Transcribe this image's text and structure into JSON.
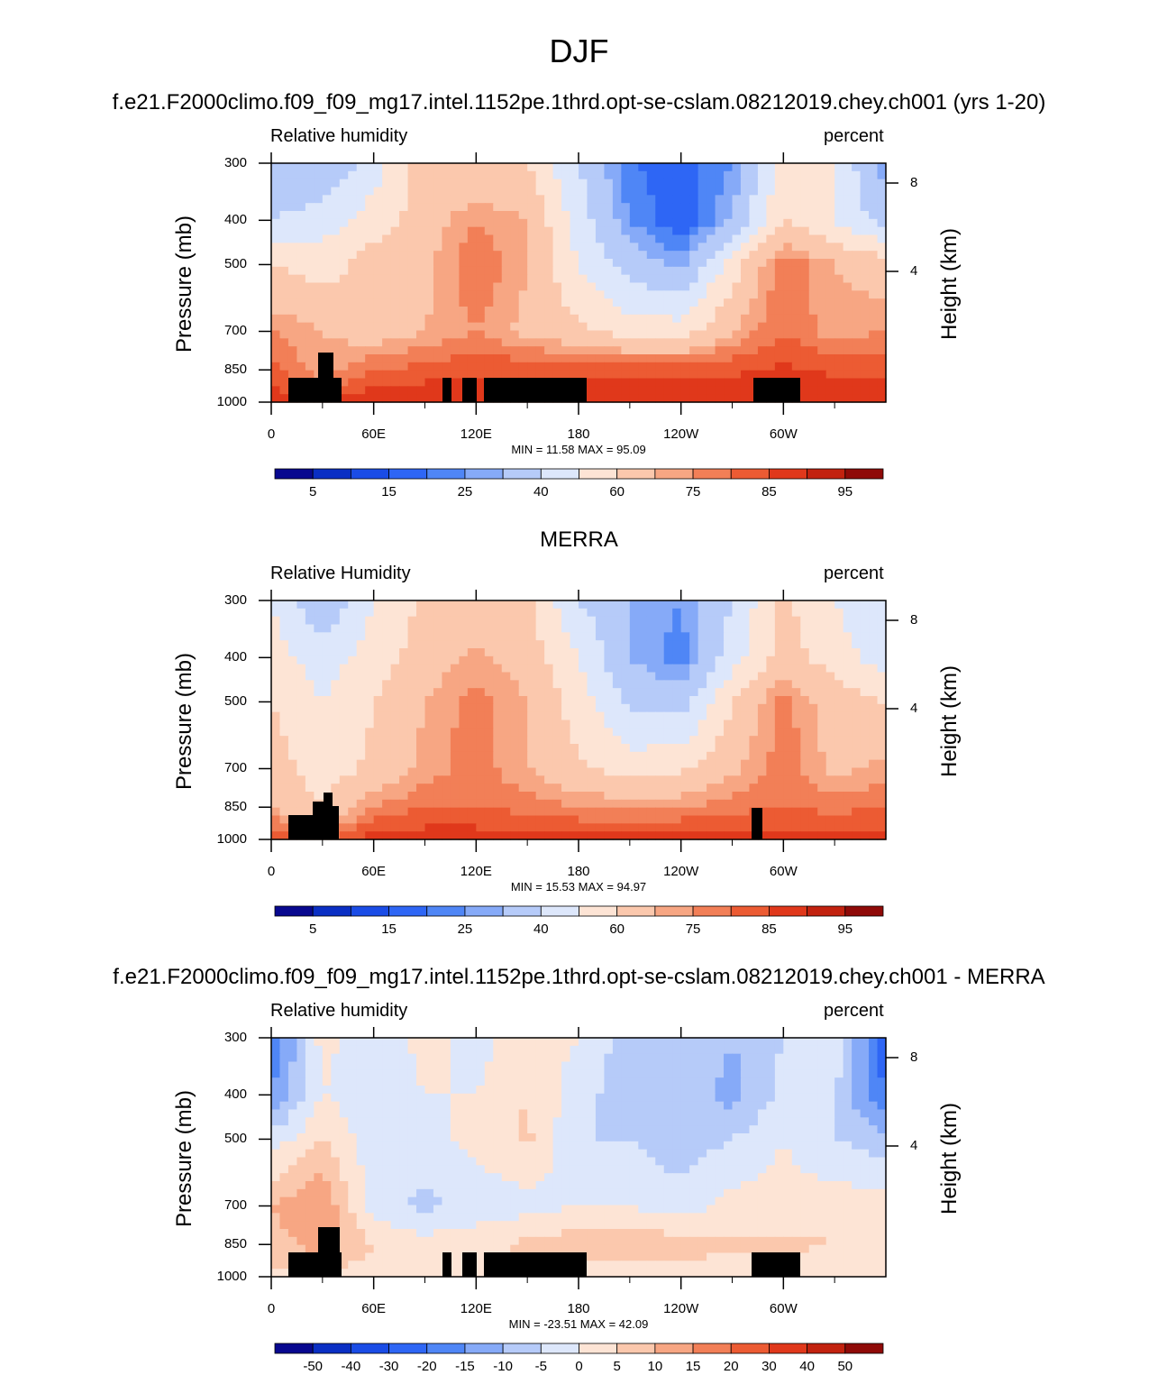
{
  "title": "DJF",
  "chart_data": [
    {
      "type": "heatmap",
      "title": "f.e21.F2000climo.f09_f09_mg17.intel.1152pe.1thrd.opt-se-cslam.08212019.chey.ch001 (yrs 1-20)",
      "variable_label": "Relative humidity",
      "units": "percent",
      "ylabel": "Pressure (mb)",
      "y2label": "Height (km)",
      "y_ticks": [
        "300",
        "400",
        "500",
        "700",
        "850",
        "1000"
      ],
      "y2_ticks": [
        "8",
        "4"
      ],
      "x_ticks": [
        "0",
        "60E",
        "120E",
        "180",
        "120W",
        "60W"
      ],
      "min_text": "MIN =  11.58  MAX =  95.09",
      "colorbar_labels": [
        "5",
        "15",
        "25",
        "40",
        "60",
        "75",
        "85",
        "95"
      ],
      "colorbar_levels": [
        5,
        10,
        15,
        20,
        25,
        30,
        40,
        50,
        60,
        70,
        75,
        80,
        85,
        90,
        95
      ],
      "x_data": [
        0,
        30,
        60,
        90,
        120,
        150,
        180,
        210,
        240,
        270,
        300,
        330,
        360
      ],
      "y_data": [
        300,
        400,
        500,
        700,
        850,
        1000
      ],
      "z": [
        [
          30,
          30,
          45,
          65,
          60,
          60,
          40,
          20,
          18,
          25,
          55,
          50,
          25
        ],
        [
          40,
          45,
          55,
          65,
          75,
          70,
          45,
          25,
          15,
          30,
          60,
          50,
          35
        ],
        [
          60,
          55,
          65,
          68,
          80,
          70,
          50,
          35,
          28,
          55,
          80,
          70,
          65
        ],
        [
          75,
          70,
          65,
          70,
          75,
          68,
          62,
          55,
          55,
          70,
          80,
          72,
          75
        ],
        [
          82,
          72,
          80,
          82,
          84,
          84,
          84,
          84,
          84,
          84,
          86,
          84,
          84
        ],
        [
          88,
          85,
          90,
          90,
          90,
          90,
          90,
          90,
          90,
          90,
          90,
          90,
          90
        ]
      ]
    },
    {
      "type": "heatmap",
      "title": "MERRA",
      "variable_label": "Relative Humidity",
      "units": "percent",
      "ylabel": "Pressure (mb)",
      "y2label": "Height (km)",
      "y_ticks": [
        "300",
        "400",
        "500",
        "700",
        "850",
        "1000"
      ],
      "y2_ticks": [
        "8",
        "4"
      ],
      "x_ticks": [
        "0",
        "60E",
        "120E",
        "180",
        "120W",
        "60W"
      ],
      "min_text": "MIN =  15.53  MAX =  94.97",
      "colorbar_labels": [
        "5",
        "15",
        "25",
        "40",
        "60",
        "75",
        "85",
        "95"
      ],
      "colorbar_levels": [
        5,
        10,
        15,
        20,
        25,
        30,
        40,
        50,
        60,
        70,
        75,
        80,
        85,
        90,
        95
      ],
      "x_data": [
        0,
        30,
        60,
        90,
        120,
        150,
        180,
        210,
        240,
        270,
        300,
        330,
        360
      ],
      "y_data": [
        300,
        400,
        500,
        700,
        850,
        1000
      ],
      "z": [
        [
          50,
          30,
          50,
          62,
          65,
          62,
          40,
          30,
          25,
          40,
          62,
          50,
          40
        ],
        [
          55,
          45,
          55,
          65,
          72,
          66,
          50,
          30,
          22,
          45,
          65,
          55,
          45
        ],
        [
          60,
          50,
          60,
          70,
          78,
          70,
          55,
          38,
          35,
          60,
          78,
          65,
          60
        ],
        [
          65,
          55,
          62,
          72,
          78,
          70,
          62,
          55,
          58,
          68,
          78,
          68,
          72
        ],
        [
          70,
          60,
          75,
          80,
          80,
          78,
          75,
          75,
          75,
          78,
          80,
          78,
          80
        ],
        [
          85,
          80,
          88,
          88,
          88,
          88,
          88,
          88,
          88,
          88,
          88,
          88,
          88
        ]
      ]
    },
    {
      "type": "heatmap",
      "title": "f.e21.F2000climo.f09_f09_mg17.intel.1152pe.1thrd.opt-se-cslam.08212019.chey.ch001 - MERRA",
      "variable_label": "Relative humidity",
      "units": "percent",
      "ylabel": "Pressure (mb)",
      "y2label": "Height (km)",
      "y_ticks": [
        "300",
        "400",
        "500",
        "700",
        "850",
        "1000"
      ],
      "y2_ticks": [
        "8",
        "4"
      ],
      "x_ticks": [
        "0",
        "60E",
        "120E",
        "180",
        "120W",
        "60W"
      ],
      "min_text": "MIN = -23.51  MAX =  42.09",
      "colorbar_labels": [
        "-50",
        "-40",
        "-30",
        "-20",
        "-15",
        "-10",
        "-5",
        "0",
        "5",
        "10",
        "15",
        "20",
        "30",
        "40",
        "50"
      ],
      "colorbar_levels": [
        -50,
        -40,
        -30,
        -20,
        -15,
        -10,
        -5,
        0,
        5,
        10,
        15,
        20,
        30,
        40,
        50
      ],
      "x_data": [
        0,
        30,
        60,
        90,
        120,
        150,
        180,
        210,
        240,
        270,
        300,
        330,
        360
      ],
      "y_data": [
        300,
        400,
        500,
        700,
        850,
        1000
      ],
      "z": [
        [
          -20,
          2,
          -5,
          2,
          -2,
          3,
          0,
          -8,
          -5,
          -10,
          -5,
          0,
          -25
        ],
        [
          -15,
          0,
          -3,
          0,
          0,
          5,
          -3,
          -8,
          -6,
          -12,
          -3,
          -5,
          -20
        ],
        [
          -3,
          5,
          -3,
          -2,
          2,
          6,
          -5,
          -5,
          -8,
          -5,
          0,
          -5,
          -8
        ],
        [
          10,
          15,
          -3,
          -6,
          -4,
          -2,
          0,
          0,
          -3,
          2,
          2,
          3,
          2
        ],
        [
          8,
          12,
          5,
          2,
          4,
          6,
          8,
          8,
          8,
          6,
          6,
          5,
          4
        ],
        [
          3,
          5,
          2,
          2,
          2,
          2,
          2,
          2,
          2,
          2,
          2,
          2,
          2
        ]
      ]
    }
  ]
}
